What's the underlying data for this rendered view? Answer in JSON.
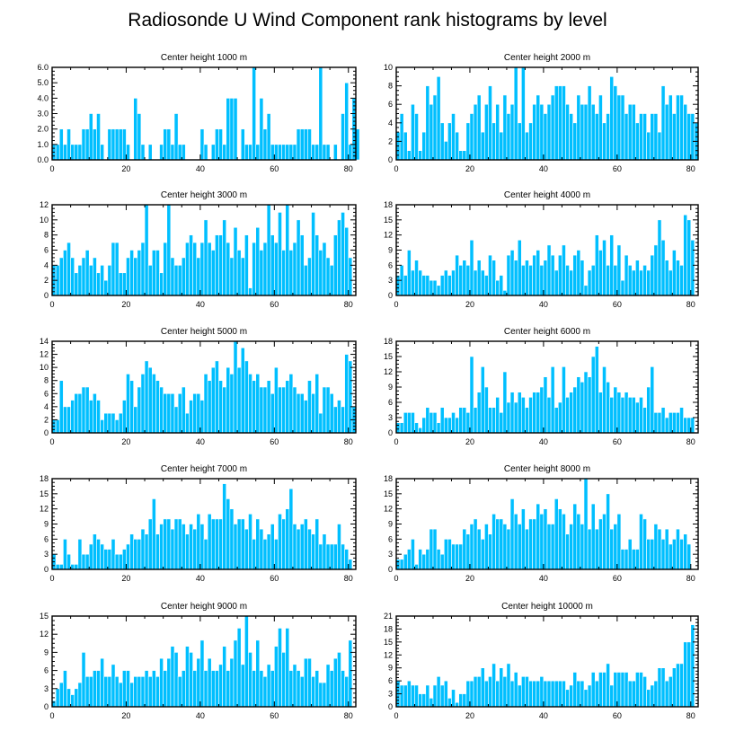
{
  "title": "Radiosonde U Wind Component rank histograms by level",
  "colors": {
    "bar": "#00bfff",
    "axis": "#000000",
    "background": "#ffffff"
  },
  "chart_data": [
    {
      "type": "bar",
      "title": "Center height 1000 m",
      "xlim": [
        0,
        82
      ],
      "ylim": [
        0,
        6
      ],
      "xticks": [
        "0",
        "20",
        "40",
        "60",
        "80"
      ],
      "yticks": [
        "0.0",
        "1.0",
        "2.0",
        "3.0",
        "4.0",
        "5.0",
        "6.0"
      ],
      "values": [
        1,
        1,
        2,
        1,
        2,
        1,
        1,
        1,
        2,
        2,
        3,
        2,
        3,
        1,
        0,
        2,
        2,
        2,
        2,
        2,
        1,
        0,
        4,
        3,
        1,
        0,
        1,
        0,
        0,
        1,
        2,
        2,
        1,
        3,
        1,
        1,
        0,
        0,
        0,
        0,
        2,
        1,
        0,
        1,
        2,
        2,
        1,
        4,
        4,
        4,
        0,
        2,
        1,
        1,
        6,
        1,
        4,
        2,
        3,
        1,
        1,
        1,
        1,
        1,
        1,
        1,
        2,
        2,
        2,
        2,
        1,
        1,
        6,
        1,
        1,
        0,
        1,
        0,
        3,
        5,
        1,
        4,
        2
      ]
    },
    {
      "type": "bar",
      "title": "Center height 2000 m",
      "xlim": [
        0,
        82
      ],
      "ylim": [
        0,
        10
      ],
      "xticks": [
        "0",
        "20",
        "40",
        "60",
        "80"
      ],
      "yticks": [
        "0",
        "2",
        "4",
        "6",
        "8",
        "10"
      ],
      "values": [
        3,
        5,
        3,
        1,
        6,
        5,
        1,
        3,
        8,
        6,
        7,
        9,
        4,
        2,
        4,
        5,
        3,
        1,
        1,
        4,
        5,
        6,
        7,
        3,
        6,
        8,
        4,
        6,
        3,
        7,
        5,
        6,
        10,
        4,
        10,
        3,
        4,
        6,
        7,
        6,
        5,
        6,
        7,
        8,
        8,
        8,
        6,
        5,
        4,
        7,
        6,
        6,
        8,
        6,
        5,
        7,
        4,
        5,
        9,
        8,
        7,
        7,
        5,
        6,
        6,
        4,
        5,
        5,
        3,
        5,
        5,
        3,
        8,
        6,
        7,
        5,
        7,
        7,
        6,
        5,
        5,
        4
      ]
    },
    {
      "type": "bar",
      "title": "Center height 3000 m",
      "xlim": [
        0,
        82
      ],
      "ylim": [
        0,
        12
      ],
      "xticks": [
        "0",
        "20",
        "40",
        "60",
        "80"
      ],
      "yticks": [
        "0",
        "2",
        "4",
        "6",
        "8",
        "10",
        "12"
      ],
      "values": [
        4,
        4,
        5,
        6,
        7,
        5,
        3,
        4,
        5,
        6,
        4,
        5,
        3,
        4,
        2,
        4,
        7,
        7,
        3,
        3,
        5,
        6,
        5,
        6,
        7,
        12,
        4,
        6,
        6,
        3,
        7,
        12,
        5,
        4,
        4,
        5,
        7,
        8,
        7,
        5,
        7,
        10,
        7,
        6,
        8,
        8,
        10,
        7,
        5,
        9,
        6,
        5,
        8,
        1,
        7,
        9,
        6,
        7,
        12,
        8,
        7,
        11,
        6,
        12,
        6,
        7,
        10,
        8,
        4,
        5,
        11,
        8,
        6,
        7,
        5,
        4,
        8,
        10,
        11,
        9,
        5
      ]
    },
    {
      "type": "bar",
      "title": "Center height 4000 m",
      "xlim": [
        0,
        82
      ],
      "ylim": [
        0,
        18
      ],
      "xticks": [
        "0",
        "20",
        "40",
        "60",
        "80"
      ],
      "yticks": [
        "0",
        "3",
        "6",
        "9",
        "12",
        "15",
        "18"
      ],
      "values": [
        4,
        6,
        4,
        9,
        5,
        7,
        5,
        4,
        4,
        3,
        3,
        2,
        4,
        5,
        4,
        5,
        8,
        6,
        7,
        6,
        11,
        5,
        7,
        5,
        4,
        8,
        7,
        3,
        4,
        1,
        8,
        9,
        7,
        11,
        6,
        7,
        6,
        8,
        9,
        6,
        7,
        10,
        8,
        5,
        8,
        10,
        6,
        5,
        8,
        9,
        7,
        2,
        5,
        6,
        12,
        9,
        11,
        6,
        12,
        6,
        10,
        3,
        8,
        6,
        5,
        7,
        5,
        6,
        5,
        8,
        10,
        15,
        11,
        7,
        5,
        9,
        7,
        6,
        16,
        15,
        11
      ]
    },
    {
      "type": "bar",
      "title": "Center height 5000 m",
      "xlim": [
        0,
        82
      ],
      "ylim": [
        0,
        14
      ],
      "xticks": [
        "0",
        "20",
        "40",
        "60",
        "80"
      ],
      "yticks": [
        "0",
        "2",
        "4",
        "6",
        "8",
        "10",
        "12",
        "14"
      ],
      "values": [
        2,
        2,
        8,
        4,
        4,
        5,
        6,
        6,
        7,
        7,
        5,
        6,
        5,
        2,
        3,
        3,
        3,
        2,
        3,
        5,
        9,
        8,
        4,
        7,
        9,
        11,
        10,
        9,
        8,
        7,
        6,
        6,
        6,
        4,
        6,
        7,
        3,
        5,
        6,
        6,
        5,
        9,
        8,
        10,
        11,
        8,
        7,
        10,
        9,
        14,
        10,
        13,
        11,
        9,
        8,
        9,
        7,
        7,
        8,
        6,
        10,
        7,
        7,
        8,
        9,
        7,
        6,
        6,
        5,
        8,
        6,
        9,
        3,
        7,
        7,
        6,
        4,
        5,
        4,
        12,
        11,
        4
      ]
    },
    {
      "type": "bar",
      "title": "Center height 6000 m",
      "xlim": [
        0,
        82
      ],
      "ylim": [
        0,
        18
      ],
      "xticks": [
        "0",
        "20",
        "40",
        "60",
        "80"
      ],
      "yticks": [
        "0",
        "3",
        "6",
        "9",
        "12",
        "15",
        "18"
      ],
      "values": [
        2,
        2,
        4,
        4,
        4,
        2,
        1,
        3,
        5,
        4,
        4,
        2,
        5,
        3,
        3,
        4,
        3,
        5,
        5,
        4,
        15,
        5,
        8,
        13,
        9,
        5,
        5,
        7,
        4,
        12,
        6,
        8,
        6,
        8,
        7,
        5,
        7,
        8,
        8,
        9,
        11,
        7,
        13,
        5,
        6,
        13,
        7,
        8,
        9,
        11,
        10,
        12,
        11,
        15,
        17,
        8,
        13,
        10,
        7,
        9,
        8,
        7,
        8,
        7,
        7,
        6,
        7,
        5,
        9,
        13,
        4,
        4,
        5,
        3,
        4,
        4,
        4,
        5,
        3,
        3,
        3
      ]
    },
    {
      "type": "bar",
      "title": "Center height 7000 m",
      "xlim": [
        0,
        82
      ],
      "ylim": [
        0,
        18
      ],
      "xticks": [
        "0",
        "20",
        "40",
        "60",
        "80"
      ],
      "yticks": [
        "0",
        "3",
        "6",
        "9",
        "12",
        "15",
        "18"
      ],
      "values": [
        3,
        1,
        1,
        6,
        3,
        1,
        1,
        6,
        3,
        3,
        5,
        7,
        6,
        5,
        4,
        4,
        6,
        3,
        3,
        4,
        5,
        7,
        6,
        6,
        8,
        7,
        10,
        14,
        7,
        9,
        10,
        10,
        8,
        10,
        10,
        9,
        7,
        9,
        8,
        11,
        9,
        6,
        11,
        10,
        10,
        10,
        17,
        14,
        12,
        9,
        10,
        10,
        8,
        11,
        6,
        10,
        8,
        6,
        7,
        9,
        6,
        11,
        10,
        12,
        16,
        9,
        8,
        9,
        10,
        8,
        7,
        10,
        5,
        7,
        5,
        5,
        5,
        9,
        5,
        4,
        2
      ]
    },
    {
      "type": "bar",
      "title": "Center height 8000 m",
      "xlim": [
        0,
        82
      ],
      "ylim": [
        0,
        18
      ],
      "xticks": [
        "0",
        "20",
        "40",
        "60",
        "80"
      ],
      "yticks": [
        "0",
        "3",
        "6",
        "9",
        "12",
        "15",
        "18"
      ],
      "values": [
        2,
        2,
        3,
        4,
        6,
        1,
        4,
        3,
        4,
        8,
        8,
        4,
        3,
        6,
        6,
        5,
        5,
        5,
        8,
        7,
        9,
        10,
        8,
        6,
        9,
        7,
        11,
        10,
        10,
        9,
        8,
        14,
        11,
        9,
        12,
        8,
        10,
        10,
        13,
        11,
        12,
        9,
        9,
        14,
        12,
        11,
        7,
        9,
        13,
        11,
        9,
        18,
        8,
        13,
        8,
        10,
        11,
        15,
        8,
        9,
        11,
        4,
        4,
        6,
        4,
        4,
        11,
        10,
        6,
        6,
        9,
        8,
        6,
        8,
        5,
        6,
        8,
        6,
        7,
        5
      ]
    },
    {
      "type": "bar",
      "title": "Center height 9000 m",
      "xlim": [
        0,
        82
      ],
      "ylim": [
        0,
        15
      ],
      "xticks": [
        "0",
        "20",
        "40",
        "60",
        "80"
      ],
      "yticks": [
        "0",
        "3",
        "6",
        "9",
        "12",
        "15"
      ],
      "values": [
        1,
        3,
        4,
        6,
        3,
        2,
        3,
        4,
        9,
        5,
        5,
        6,
        6,
        8,
        5,
        5,
        7,
        5,
        4,
        6,
        6,
        4,
        5,
        5,
        5,
        6,
        5,
        6,
        5,
        8,
        6,
        8,
        10,
        9,
        5,
        6,
        10,
        9,
        6,
        8,
        11,
        6,
        8,
        6,
        6,
        7,
        10,
        6,
        8,
        11,
        13,
        7,
        15,
        9,
        6,
        11,
        6,
        5,
        7,
        6,
        10,
        13,
        9,
        13,
        6,
        7,
        6,
        5,
        8,
        8,
        5,
        6,
        4,
        4,
        7,
        6,
        8,
        9,
        6,
        5,
        11
      ]
    },
    {
      "type": "bar",
      "title": "Center height 10000 m",
      "xlim": [
        0,
        82
      ],
      "ylim": [
        0,
        21
      ],
      "xticks": [
        "0",
        "20",
        "40",
        "60",
        "80"
      ],
      "yticks": [
        "0",
        "3",
        "6",
        "9",
        "12",
        "15",
        "18",
        "21"
      ],
      "values": [
        6,
        5,
        5,
        6,
        5,
        5,
        3,
        3,
        5,
        2,
        5,
        7,
        5,
        6,
        2,
        4,
        1,
        3,
        3,
        6,
        6,
        7,
        7,
        9,
        6,
        7,
        10,
        6,
        9,
        7,
        10,
        6,
        8,
        5,
        7,
        7,
        6,
        6,
        6,
        7,
        6,
        6,
        6,
        6,
        6,
        6,
        4,
        5,
        8,
        6,
        6,
        4,
        5,
        8,
        6,
        8,
        8,
        10,
        5,
        8,
        8,
        8,
        8,
        6,
        6,
        8,
        8,
        7,
        4,
        5,
        6,
        9,
        9,
        6,
        7,
        9,
        10,
        10,
        15,
        15,
        19
      ]
    }
  ]
}
